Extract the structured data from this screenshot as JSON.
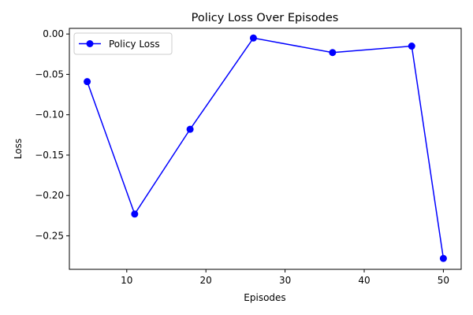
{
  "chart_data": {
    "type": "line",
    "title": "Policy Loss Over Episodes",
    "xlabel": "Episodes",
    "ylabel": "Loss",
    "xlim": [
      2.75,
      52.25
    ],
    "ylim": [
      -0.2915,
      0.007
    ],
    "xticks": [
      10,
      20,
      30,
      40,
      50
    ],
    "yticks": [
      0.0,
      -0.05,
      -0.1,
      -0.15,
      -0.2,
      -0.25
    ],
    "ytick_labels": [
      "0.00",
      "−0.05",
      "−0.10",
      "−0.15",
      "−0.20",
      "−0.25"
    ],
    "grid": false,
    "legend_position": "upper-left",
    "series": [
      {
        "name": "Policy Loss",
        "color": "#0000ff",
        "marker": "circle",
        "x": [
          5,
          11,
          18,
          26,
          36,
          46,
          50
        ],
        "y": [
          -0.059,
          -0.223,
          -0.118,
          -0.005,
          -0.023,
          -0.015,
          -0.278
        ]
      }
    ]
  }
}
